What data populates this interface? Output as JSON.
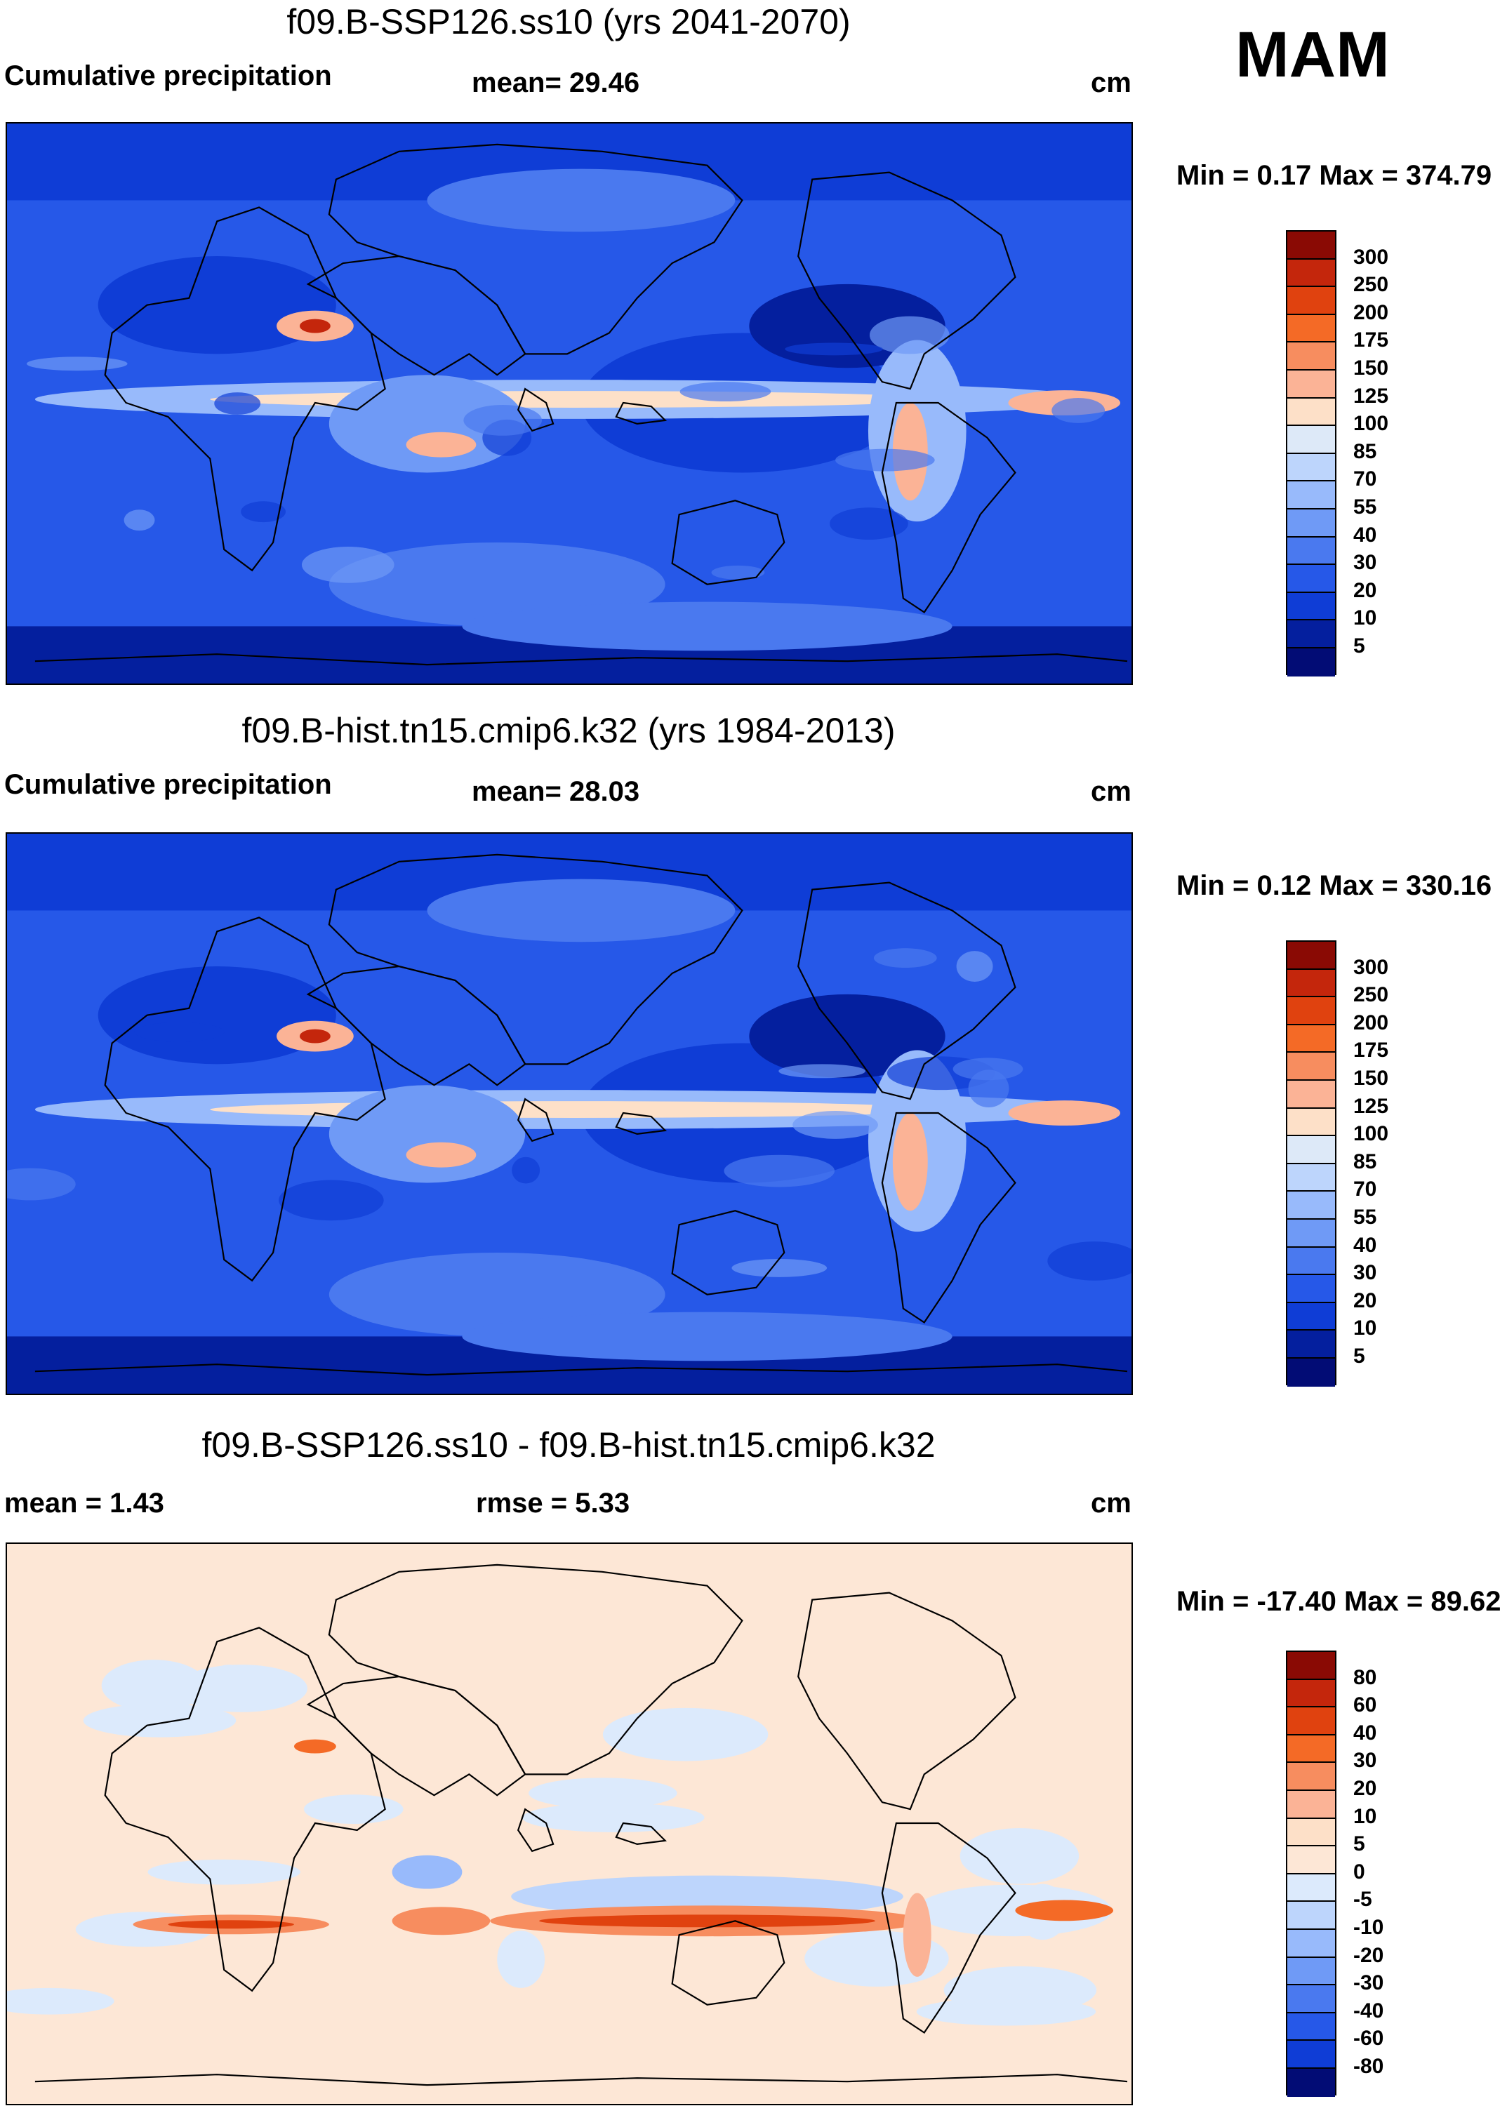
{
  "season": "MAM",
  "panels": [
    {
      "title": "f09.B-SSP126.ss10 (yrs 2041-2070)",
      "left_label": "Cumulative precipitation",
      "center_label": "mean=  29.46",
      "units": "cm",
      "minmax": "Min =   0.17 Max = 374.79",
      "kind": "precip"
    },
    {
      "title": "f09.B-hist.tn15.cmip6.k32 (yrs 1984-2013)",
      "left_label": "Cumulative precipitation",
      "center_label": "mean=  28.03",
      "units": "cm",
      "minmax": "Min =   0.12 Max = 330.16",
      "kind": "precip"
    },
    {
      "title": "f09.B-SSP126.ss10 - f09.B-hist.tn15.cmip6.k32",
      "left_label": "mean =   1.43",
      "center_label": "rmse =   5.33",
      "units": "cm",
      "minmax": "Min = -17.40 Max =  89.62",
      "kind": "diff"
    }
  ],
  "colorbars": {
    "precip": {
      "labels": [
        "300",
        "250",
        "200",
        "175",
        "150",
        "125",
        "100",
        "85",
        "70",
        "55",
        "40",
        "30",
        "20",
        "10",
        "5"
      ],
      "colors": [
        "#8a0a04",
        "#c4260c",
        "#e0420f",
        "#f46a26",
        "#f78d5f",
        "#fbb396",
        "#fde0c8",
        "#dde9f8",
        "#bdd5fc",
        "#98bafb",
        "#6f9af6",
        "#4a79ef",
        "#2658e8",
        "#0f3dd6",
        "#041f9e",
        "#020c75"
      ]
    },
    "diff": {
      "labels": [
        "80",
        "60",
        "40",
        "30",
        "20",
        "10",
        "5",
        "0",
        "-5",
        "-10",
        "-20",
        "-30",
        "-40",
        "-60",
        "-80"
      ],
      "colors": [
        "#8a0a04",
        "#c4260c",
        "#e0420f",
        "#f46a26",
        "#f78d5f",
        "#fbb396",
        "#fde0c8",
        "#fde7d6",
        "#dceafc",
        "#bdd5fc",
        "#98bafb",
        "#6f9af6",
        "#4a79ef",
        "#2658e8",
        "#0f3dd6",
        "#020c75"
      ]
    }
  }
}
